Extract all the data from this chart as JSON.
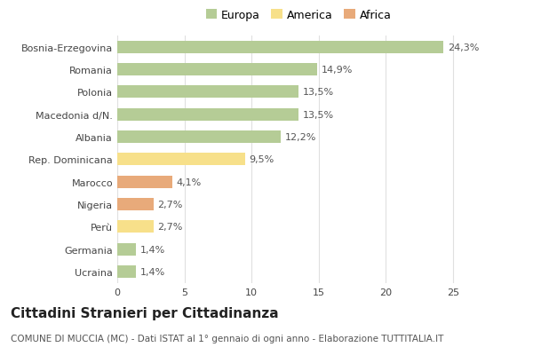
{
  "categories": [
    "Bosnia-Erzegovina",
    "Romania",
    "Polonia",
    "Macedonia d/N.",
    "Albania",
    "Rep. Dominicana",
    "Marocco",
    "Nigeria",
    "Perù",
    "Germania",
    "Ucraina"
  ],
  "values": [
    24.3,
    14.9,
    13.5,
    13.5,
    12.2,
    9.5,
    4.1,
    2.7,
    2.7,
    1.4,
    1.4
  ],
  "labels": [
    "24,3%",
    "14,9%",
    "13,5%",
    "13,5%",
    "12,2%",
    "9,5%",
    "4,1%",
    "2,7%",
    "2,7%",
    "1,4%",
    "1,4%"
  ],
  "colors": [
    "#b5cc96",
    "#b5cc96",
    "#b5cc96",
    "#b5cc96",
    "#b5cc96",
    "#f7e08a",
    "#e8aa7a",
    "#e8aa7a",
    "#f7e08a",
    "#b5cc96",
    "#b5cc96"
  ],
  "legend": [
    {
      "label": "Europa",
      "color": "#b5cc96"
    },
    {
      "label": "America",
      "color": "#f7e08a"
    },
    {
      "label": "Africa",
      "color": "#e8aa7a"
    }
  ],
  "xlim": [
    0,
    27
  ],
  "xticks": [
    0,
    5,
    10,
    15,
    20,
    25
  ],
  "title": "Cittadini Stranieri per Cittadinanza",
  "subtitle": "COMUNE DI MUCCIA (MC) - Dati ISTAT al 1° gennaio di ogni anno - Elaborazione TUTTITALIA.IT",
  "background_color": "#ffffff",
  "grid_color": "#e0e0e0",
  "bar_height": 0.55,
  "title_fontsize": 11,
  "subtitle_fontsize": 7.5,
  "label_fontsize": 8,
  "tick_fontsize": 8,
  "legend_fontsize": 9
}
